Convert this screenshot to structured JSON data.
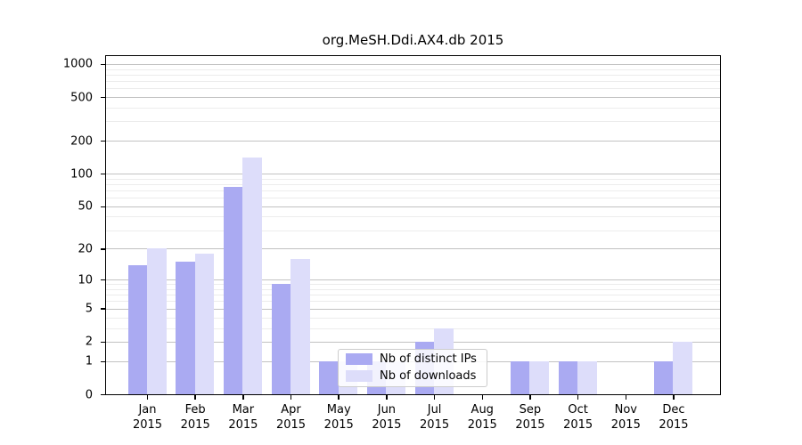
{
  "chart_data": {
    "type": "bar",
    "title": "org.MeSH.Ddi.AX4.db 2015",
    "categories": [
      "Jan",
      "Feb",
      "Mar",
      "Apr",
      "May",
      "Jun",
      "Jul",
      "Aug",
      "Sep",
      "Oct",
      "Nov",
      "Dec"
    ],
    "x_sublabel_year": "2015",
    "series": [
      {
        "name": "Nb of distinct IPs",
        "color": "#aaaaf2",
        "values": [
          14,
          15,
          75,
          9,
          1,
          1,
          2,
          0,
          1,
          1,
          0,
          1
        ]
      },
      {
        "name": "Nb of downloads",
        "color": "#ddddfa",
        "values": [
          20,
          18,
          140,
          16,
          1,
          1,
          3,
          0,
          1,
          1,
          0,
          2
        ]
      }
    ],
    "y_axis": {
      "scale": "log1p",
      "tick_values": [
        0,
        1,
        2,
        5,
        10,
        20,
        50,
        100,
        200,
        500,
        1000
      ],
      "minor_tick_values": [
        3,
        4,
        6,
        7,
        8,
        9,
        30,
        40,
        60,
        70,
        80,
        90,
        300,
        400,
        600,
        700,
        800,
        900
      ],
      "ylim": [
        0,
        1200
      ]
    },
    "xlabel": "",
    "ylabel": "",
    "grid": "on",
    "legend_position": "lower-center-left-inside"
  }
}
